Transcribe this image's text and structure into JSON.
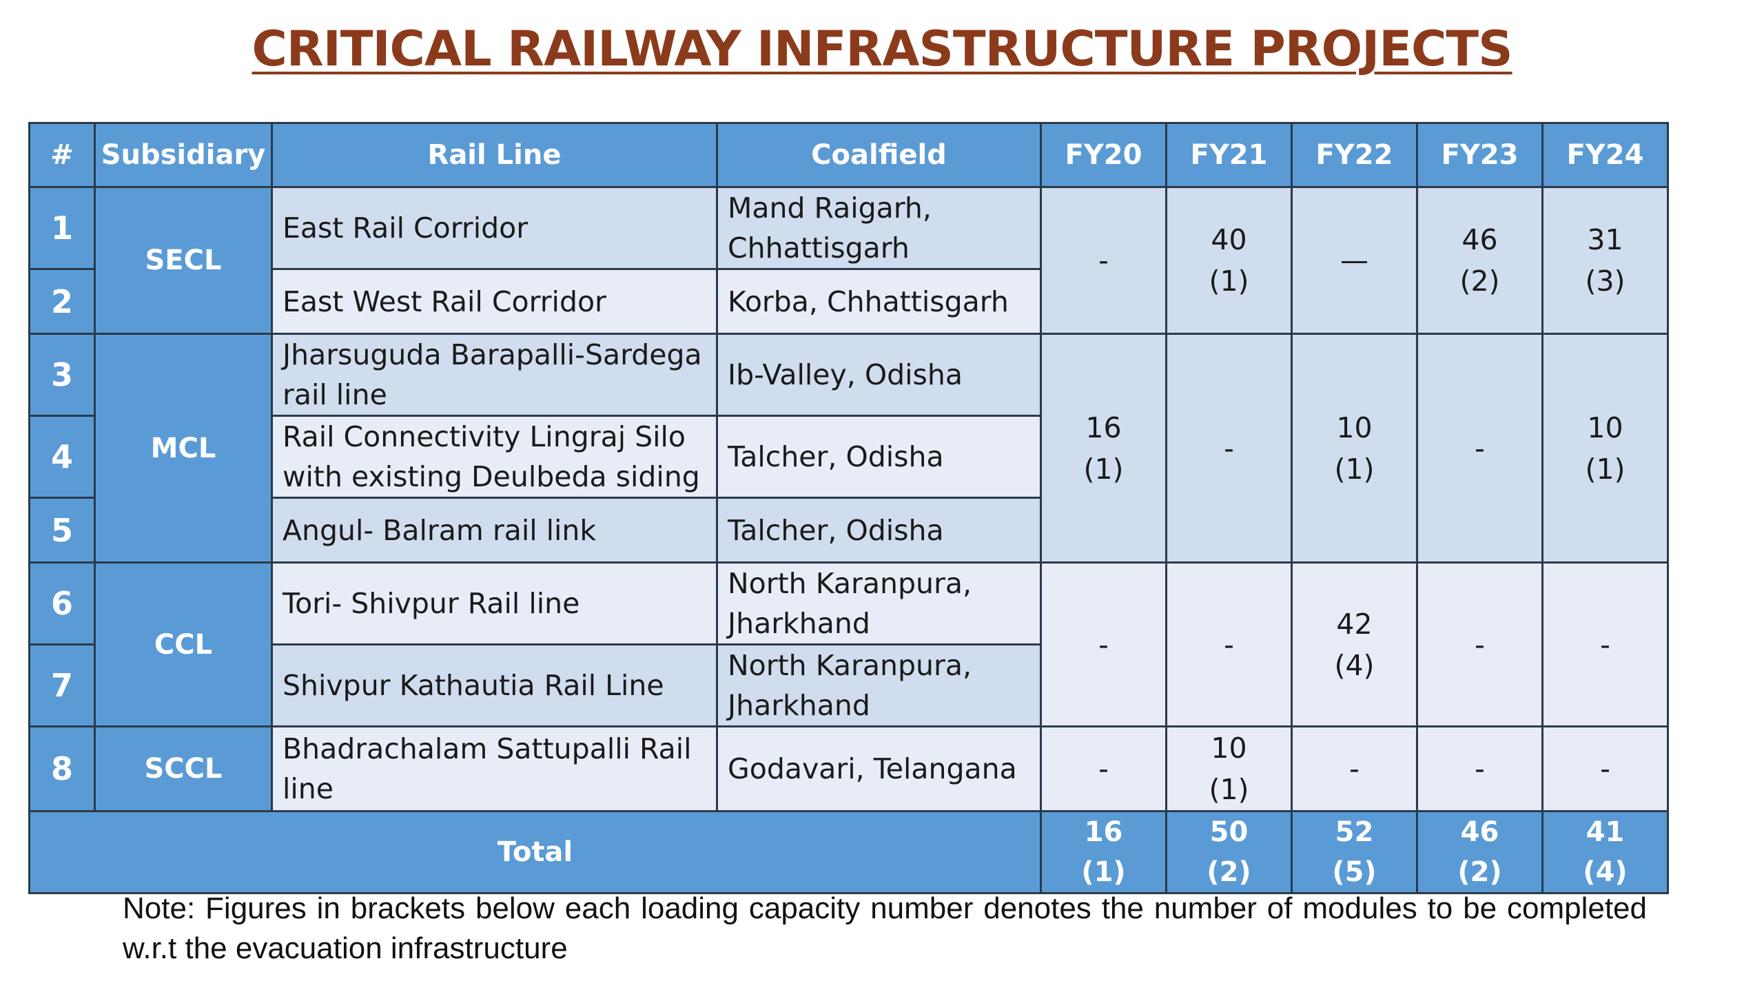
{
  "title": "CRITICAL RAILWAY INFRASTRUCTURE PROJECTS",
  "headers": {
    "num": "#",
    "subsidiary": "Subsidiary",
    "rail_line": "Rail Line",
    "coalfield": "Coalfield",
    "fy20": "FY20",
    "fy21": "FY21",
    "fy22": "FY22",
    "fy23": "FY23",
    "fy24": "FY24"
  },
  "subsidiaries": {
    "secl": "SECL",
    "mcl": "MCL",
    "ccl": "CCL",
    "sccl": "SCCL"
  },
  "rows": [
    {
      "num": "1",
      "rail_line": "East Rail Corridor",
      "coalfield": "Mand Raigarh, Chhattisgarh"
    },
    {
      "num": "2",
      "rail_line": "East West Rail Corridor",
      "coalfield": "Korba, Chhattisgarh"
    },
    {
      "num": "3",
      "rail_line": "Jharsuguda Barapalli-Sardega rail line",
      "coalfield": "Ib-Valley, Odisha"
    },
    {
      "num": "4",
      "rail_line": "Rail Connectivity Lingraj Silo with existing Deulbeda siding",
      "coalfield": "Talcher, Odisha"
    },
    {
      "num": "5",
      "rail_line": "Angul- Balram rail link",
      "coalfield": "Talcher, Odisha"
    },
    {
      "num": "6",
      "rail_line": "Tori- Shivpur Rail line",
      "coalfield": "North Karanpura, Jharkhand"
    },
    {
      "num": "7",
      "rail_line": "Shivpur Kathautia Rail Line",
      "coalfield": "North Karanpura, Jharkhand"
    },
    {
      "num": "8",
      "rail_line": "Bhadrachalam Sattupalli Rail line",
      "coalfield": "Godavari, Telangana"
    }
  ],
  "fy_values": {
    "secl": {
      "fy20": "-",
      "fy21": "40",
      "fy21_mod": "(1)",
      "fy22": "—",
      "fy23": "46",
      "fy23_mod": "(2)",
      "fy24": "31",
      "fy24_mod": "(3)"
    },
    "mcl": {
      "fy20": "16",
      "fy20_mod": "(1)",
      "fy21": "-",
      "fy22": "10",
      "fy22_mod": "(1)",
      "fy23": "-",
      "fy24": "10",
      "fy24_mod": "(1)"
    },
    "ccl": {
      "fy20": "-",
      "fy21": "-",
      "fy22": "42",
      "fy22_mod": "(4)",
      "fy23": "-",
      "fy24": "-"
    },
    "sccl": {
      "fy20": "-",
      "fy21": "10",
      "fy21_mod": "(1)",
      "fy22": "-",
      "fy23": "-",
      "fy24": "-"
    }
  },
  "total": {
    "label": "Total",
    "fy20": "16",
    "fy20_mod": "(1)",
    "fy21": "50",
    "fy21_mod": "(2)",
    "fy22": "52",
    "fy22_mod": "(5)",
    "fy23": "46",
    "fy23_mod": "(2)",
    "fy24": "41",
    "fy24_mod": "(4)"
  },
  "note": "Note: Figures in brackets below each loading capacity number denotes the number of modules to be completed w.r.t the evacuation infrastructure"
}
